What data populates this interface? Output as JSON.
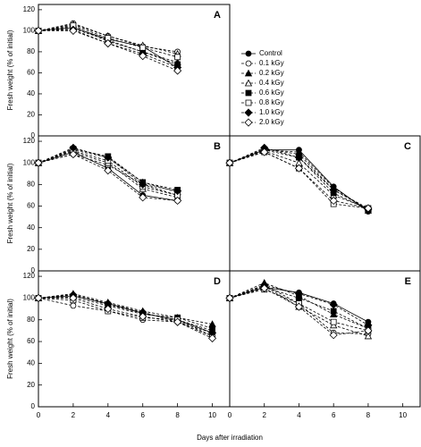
{
  "chart_data": [
    {
      "type": "line",
      "title": "A",
      "ylabel": "Fresh weight (% of initial)",
      "x": [
        0,
        2,
        4,
        6,
        8
      ],
      "xlim": [
        0,
        11
      ],
      "ylim": [
        0,
        125
      ],
      "yticks": [
        0,
        20,
        40,
        60,
        80,
        100,
        120
      ],
      "legend": "right",
      "series": [
        {
          "name": "Control",
          "color": "#000000",
          "marker": "circle",
          "filled": true,
          "dash": false,
          "values": [
            100,
            103,
            92,
            85,
            65
          ]
        },
        {
          "name": "0.1 kGy",
          "color": "#000000",
          "marker": "circle",
          "filled": false,
          "dash": true,
          "values": [
            100,
            107,
            95,
            85,
            80
          ]
        },
        {
          "name": "0.2 kGy",
          "color": "#000000",
          "marker": "triangle",
          "filled": true,
          "dash": true,
          "values": [
            100,
            104,
            90,
            80,
            70
          ]
        },
        {
          "name": "0.4 kGy",
          "color": "#000000",
          "marker": "triangle",
          "filled": false,
          "dash": true,
          "values": [
            100,
            106,
            95,
            86,
            78
          ]
        },
        {
          "name": "0.6 kGy",
          "color": "#000000",
          "marker": "square",
          "filled": true,
          "dash": true,
          "values": [
            100,
            102,
            91,
            80,
            68
          ]
        },
        {
          "name": "0.8 kGy",
          "color": "#000000",
          "marker": "square",
          "filled": false,
          "dash": true,
          "values": [
            100,
            105,
            93,
            84,
            75
          ]
        },
        {
          "name": "1.0 kGy",
          "color": "#000000",
          "marker": "diamond",
          "filled": true,
          "dash": true,
          "values": [
            100,
            101,
            88,
            78,
            65
          ]
        },
        {
          "name": "2.0 kGy",
          "color": "#000000",
          "marker": "diamond",
          "filled": false,
          "dash": true,
          "values": [
            100,
            100,
            88,
            76,
            62
          ]
        }
      ]
    },
    {
      "type": "line",
      "title": "B",
      "ylabel": "Fresh weight (% of initial)",
      "x": [
        0,
        2,
        4,
        6,
        8
      ],
      "xlim": [
        0,
        11
      ],
      "ylim": [
        0,
        125
      ],
      "yticks": [
        0,
        20,
        40,
        60,
        80,
        100,
        120
      ],
      "series": [
        {
          "color": "#000000",
          "marker": "circle",
          "filled": true,
          "dash": false,
          "values": [
            100,
            110,
            95,
            70,
            65
          ]
        },
        {
          "color": "#000000",
          "marker": "circle",
          "filled": false,
          "dash": true,
          "values": [
            100,
            108,
            98,
            80,
            70
          ]
        },
        {
          "color": "#000000",
          "marker": "triangle",
          "filled": true,
          "dash": true,
          "values": [
            100,
            112,
            105,
            82,
            73
          ]
        },
        {
          "color": "#000000",
          "marker": "triangle",
          "filled": false,
          "dash": true,
          "values": [
            100,
            110,
            100,
            76,
            68
          ]
        },
        {
          "color": "#000000",
          "marker": "square",
          "filled": true,
          "dash": true,
          "values": [
            100,
            113,
            106,
            82,
            75
          ]
        },
        {
          "color": "#000000",
          "marker": "square",
          "filled": false,
          "dash": true,
          "values": [
            100,
            111,
            102,
            78,
            70
          ]
        },
        {
          "color": "#000000",
          "marker": "diamond",
          "filled": true,
          "dash": true,
          "values": [
            100,
            114,
            105,
            80,
            74
          ]
        },
        {
          "color": "#000000",
          "marker": "diamond",
          "filled": false,
          "dash": true,
          "values": [
            100,
            108,
            93,
            68,
            65
          ]
        }
      ]
    },
    {
      "type": "line",
      "title": "C",
      "x": [
        0,
        2,
        4,
        6,
        8
      ],
      "xlim": [
        0,
        11
      ],
      "ylim": [
        0,
        125
      ],
      "series": [
        {
          "color": "#000000",
          "marker": "circle",
          "filled": true,
          "dash": false,
          "values": [
            100,
            112,
            112,
            78,
            55
          ]
        },
        {
          "color": "#000000",
          "marker": "circle",
          "filled": false,
          "dash": true,
          "values": [
            100,
            113,
            108,
            75,
            58
          ]
        },
        {
          "color": "#000000",
          "marker": "triangle",
          "filled": true,
          "dash": true,
          "values": [
            100,
            112,
            110,
            77,
            56
          ]
        },
        {
          "color": "#000000",
          "marker": "triangle",
          "filled": false,
          "dash": true,
          "values": [
            100,
            111,
            100,
            70,
            58
          ]
        },
        {
          "color": "#000000",
          "marker": "square",
          "filled": true,
          "dash": true,
          "values": [
            100,
            112,
            105,
            72,
            57
          ]
        },
        {
          "color": "#000000",
          "marker": "square",
          "filled": false,
          "dash": true,
          "values": [
            100,
            110,
            95,
            62,
            58
          ]
        },
        {
          "color": "#000000",
          "marker": "diamond",
          "filled": true,
          "dash": true,
          "values": [
            100,
            114,
            105,
            75,
            57
          ]
        },
        {
          "color": "#000000",
          "marker": "diamond",
          "filled": false,
          "dash": true,
          "values": [
            100,
            110,
            95,
            65,
            58
          ]
        }
      ]
    },
    {
      "type": "line",
      "title": "D",
      "ylabel": "Fresh weight (% of initial)",
      "xlabel": "Days after irradiation",
      "x": [
        0,
        2,
        4,
        6,
        8,
        10
      ],
      "xlim": [
        0,
        11
      ],
      "xticks": [
        0,
        2,
        4,
        6,
        8,
        10
      ],
      "ylim": [
        0,
        125
      ],
      "yticks": [
        0,
        20,
        40,
        60,
        80,
        100,
        120
      ],
      "series": [
        {
          "color": "#000000",
          "marker": "circle",
          "filled": true,
          "dash": false,
          "values": [
            100,
            102,
            95,
            86,
            80,
            68
          ]
        },
        {
          "color": "#000000",
          "marker": "circle",
          "filled": false,
          "dash": true,
          "values": [
            100,
            93,
            88,
            80,
            78,
            65
          ]
        },
        {
          "color": "#000000",
          "marker": "triangle",
          "filled": true,
          "dash": true,
          "values": [
            100,
            104,
            96,
            88,
            82,
            76
          ]
        },
        {
          "color": "#000000",
          "marker": "triangle",
          "filled": false,
          "dash": true,
          "values": [
            100,
            103,
            94,
            86,
            80,
            70
          ]
        },
        {
          "color": "#000000",
          "marker": "square",
          "filled": true,
          "dash": true,
          "values": [
            100,
            101,
            93,
            85,
            82,
            72
          ]
        },
        {
          "color": "#000000",
          "marker": "square",
          "filled": false,
          "dash": true,
          "values": [
            100,
            98,
            88,
            82,
            80,
            65
          ]
        },
        {
          "color": "#000000",
          "marker": "diamond",
          "filled": true,
          "dash": true,
          "values": [
            100,
            103,
            95,
            87,
            78,
            68
          ]
        },
        {
          "color": "#000000",
          "marker": "diamond",
          "filled": false,
          "dash": true,
          "values": [
            100,
            100,
            90,
            83,
            78,
            63
          ]
        }
      ]
    },
    {
      "type": "line",
      "title": "E",
      "x": [
        0,
        2,
        4,
        6,
        8
      ],
      "xlim": [
        0,
        11
      ],
      "xticks": [
        0,
        2,
        4,
        6,
        8,
        10
      ],
      "ylim": [
        0,
        125
      ],
      "series": [
        {
          "color": "#000000",
          "marker": "circle",
          "filled": true,
          "dash": false,
          "values": [
            100,
            110,
            105,
            95,
            78
          ]
        },
        {
          "color": "#000000",
          "marker": "circle",
          "filled": false,
          "dash": true,
          "values": [
            100,
            112,
            95,
            68,
            67
          ]
        },
        {
          "color": "#000000",
          "marker": "triangle",
          "filled": true,
          "dash": true,
          "values": [
            100,
            114,
            102,
            85,
            72
          ]
        },
        {
          "color": "#000000",
          "marker": "triangle",
          "filled": false,
          "dash": true,
          "values": [
            100,
            111,
            92,
            75,
            65
          ]
        },
        {
          "color": "#000000",
          "marker": "square",
          "filled": true,
          "dash": true,
          "values": [
            100,
            110,
            100,
            88,
            72
          ]
        },
        {
          "color": "#000000",
          "marker": "square",
          "filled": false,
          "dash": true,
          "values": [
            100,
            108,
            95,
            78,
            70
          ]
        },
        {
          "color": "#000000",
          "marker": "diamond",
          "filled": true,
          "dash": true,
          "values": [
            100,
            112,
            104,
            94,
            75
          ]
        },
        {
          "color": "#000000",
          "marker": "diamond",
          "filled": false,
          "dash": true,
          "values": [
            100,
            109,
            92,
            66,
            70
          ]
        }
      ]
    }
  ]
}
